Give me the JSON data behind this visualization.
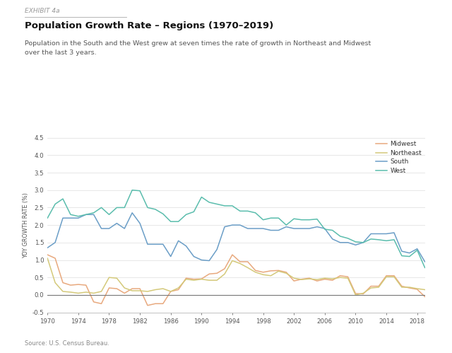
{
  "title": "Population Growth Rate – Regions (1970–2019)",
  "exhibit_label": "EXHIBIT 4a",
  "subtitle": "Population in the South and the West grew at seven times the rate of growth in Northeast and Midwest\nover the last 3 years.",
  "source": "Source: U.S. Census Bureau.",
  "ylabel": "YOY GROWTH RATE (%)",
  "ylim": [
    -0.5,
    4.5
  ],
  "yticks": [
    -0.5,
    0.0,
    0.5,
    1.0,
    1.5,
    2.0,
    2.5,
    3.0,
    3.5,
    4.0,
    4.5
  ],
  "xticks": [
    1970,
    1974,
    1978,
    1982,
    1986,
    1990,
    1994,
    1998,
    2002,
    2006,
    2010,
    2014,
    2018
  ],
  "background_color": "#ffffff",
  "series": {
    "Midwest": {
      "color": "#E8A97E",
      "years": [
        1970,
        1971,
        1972,
        1973,
        1974,
        1975,
        1976,
        1977,
        1978,
        1979,
        1980,
        1981,
        1982,
        1983,
        1984,
        1985,
        1986,
        1987,
        1988,
        1989,
        1990,
        1991,
        1992,
        1993,
        1994,
        1995,
        1996,
        1997,
        1998,
        1999,
        2000,
        2001,
        2002,
        2003,
        2004,
        2005,
        2006,
        2007,
        2008,
        2009,
        2010,
        2011,
        2012,
        2013,
        2014,
        2015,
        2016,
        2017,
        2018,
        2019
      ],
      "values": [
        1.15,
        1.05,
        0.35,
        0.28,
        0.3,
        0.28,
        -0.2,
        -0.25,
        0.2,
        0.18,
        0.05,
        0.18,
        0.18,
        -0.3,
        -0.25,
        -0.25,
        0.1,
        0.15,
        0.48,
        0.45,
        0.46,
        0.6,
        0.62,
        0.75,
        1.15,
        0.95,
        0.95,
        0.7,
        0.65,
        0.69,
        0.7,
        0.65,
        0.4,
        0.45,
        0.48,
        0.4,
        0.45,
        0.42,
        0.55,
        0.52,
        0.04,
        0.03,
        0.25,
        0.25,
        0.55,
        0.55,
        0.25,
        0.2,
        0.16,
        -0.05
      ]
    },
    "Northeast": {
      "color": "#D4C97A",
      "years": [
        1970,
        1971,
        1972,
        1973,
        1974,
        1975,
        1976,
        1977,
        1978,
        1979,
        1980,
        1981,
        1982,
        1983,
        1984,
        1985,
        1986,
        1987,
        1988,
        1989,
        1990,
        1991,
        1992,
        1993,
        1994,
        1995,
        1996,
        1997,
        1998,
        1999,
        2000,
        2001,
        2002,
        2003,
        2004,
        2005,
        2006,
        2007,
        2008,
        2009,
        2010,
        2011,
        2012,
        2013,
        2014,
        2015,
        2016,
        2017,
        2018,
        2019
      ],
      "values": [
        1.05,
        0.35,
        0.1,
        0.08,
        0.05,
        0.08,
        0.05,
        0.1,
        0.5,
        0.48,
        0.2,
        0.12,
        0.12,
        0.1,
        0.15,
        0.18,
        0.1,
        0.2,
        0.45,
        0.42,
        0.45,
        0.42,
        0.42,
        0.6,
        0.98,
        0.9,
        0.78,
        0.65,
        0.58,
        0.55,
        0.68,
        0.62,
        0.48,
        0.44,
        0.46,
        0.44,
        0.48,
        0.46,
        0.5,
        0.48,
        0.0,
        0.05,
        0.2,
        0.22,
        0.52,
        0.52,
        0.22,
        0.22,
        0.18,
        0.15
      ]
    },
    "South": {
      "color": "#6B9EC7",
      "years": [
        1970,
        1971,
        1972,
        1973,
        1974,
        1975,
        1976,
        1977,
        1978,
        1979,
        1980,
        1981,
        1982,
        1983,
        1984,
        1985,
        1986,
        1987,
        1988,
        1989,
        1990,
        1991,
        1992,
        1993,
        1994,
        1995,
        1996,
        1997,
        1998,
        1999,
        2000,
        2001,
        2002,
        2003,
        2004,
        2005,
        2006,
        2007,
        2008,
        2009,
        2010,
        2011,
        2012,
        2013,
        2014,
        2015,
        2016,
        2017,
        2018,
        2019
      ],
      "values": [
        1.35,
        1.5,
        2.2,
        2.2,
        2.2,
        2.3,
        2.3,
        1.9,
        1.9,
        2.05,
        1.9,
        2.35,
        2.05,
        1.45,
        1.45,
        1.45,
        1.1,
        1.55,
        1.4,
        1.1,
        1.0,
        0.98,
        1.3,
        1.95,
        2.0,
        2.0,
        1.9,
        1.9,
        1.9,
        1.85,
        1.85,
        1.95,
        1.9,
        1.9,
        1.9,
        1.95,
        1.9,
        1.6,
        1.5,
        1.5,
        1.43,
        1.5,
        1.75,
        1.75,
        1.75,
        1.78,
        1.25,
        1.2,
        1.32,
        0.95
      ]
    },
    "West": {
      "color": "#5BBDAD",
      "years": [
        1970,
        1971,
        1972,
        1973,
        1974,
        1975,
        1976,
        1977,
        1978,
        1979,
        1980,
        1981,
        1982,
        1983,
        1984,
        1985,
        1986,
        1987,
        1988,
        1989,
        1990,
        1991,
        1992,
        1993,
        1994,
        1995,
        1996,
        1997,
        1998,
        1999,
        2000,
        2001,
        2002,
        2003,
        2004,
        2005,
        2006,
        2007,
        2008,
        2009,
        2010,
        2011,
        2012,
        2013,
        2014,
        2015,
        2016,
        2017,
        2018,
        2019
      ],
      "values": [
        2.2,
        2.6,
        2.75,
        2.3,
        2.25,
        2.3,
        2.35,
        2.5,
        2.3,
        2.5,
        2.5,
        3.0,
        2.98,
        2.5,
        2.45,
        2.32,
        2.1,
        2.1,
        2.3,
        2.38,
        2.8,
        2.65,
        2.6,
        2.55,
        2.55,
        2.4,
        2.4,
        2.35,
        2.15,
        2.2,
        2.2,
        2.0,
        2.18,
        2.15,
        2.15,
        2.17,
        1.88,
        1.85,
        1.68,
        1.62,
        1.52,
        1.5,
        1.6,
        1.58,
        1.55,
        1.58,
        1.12,
        1.1,
        1.28,
        0.78
      ]
    }
  }
}
